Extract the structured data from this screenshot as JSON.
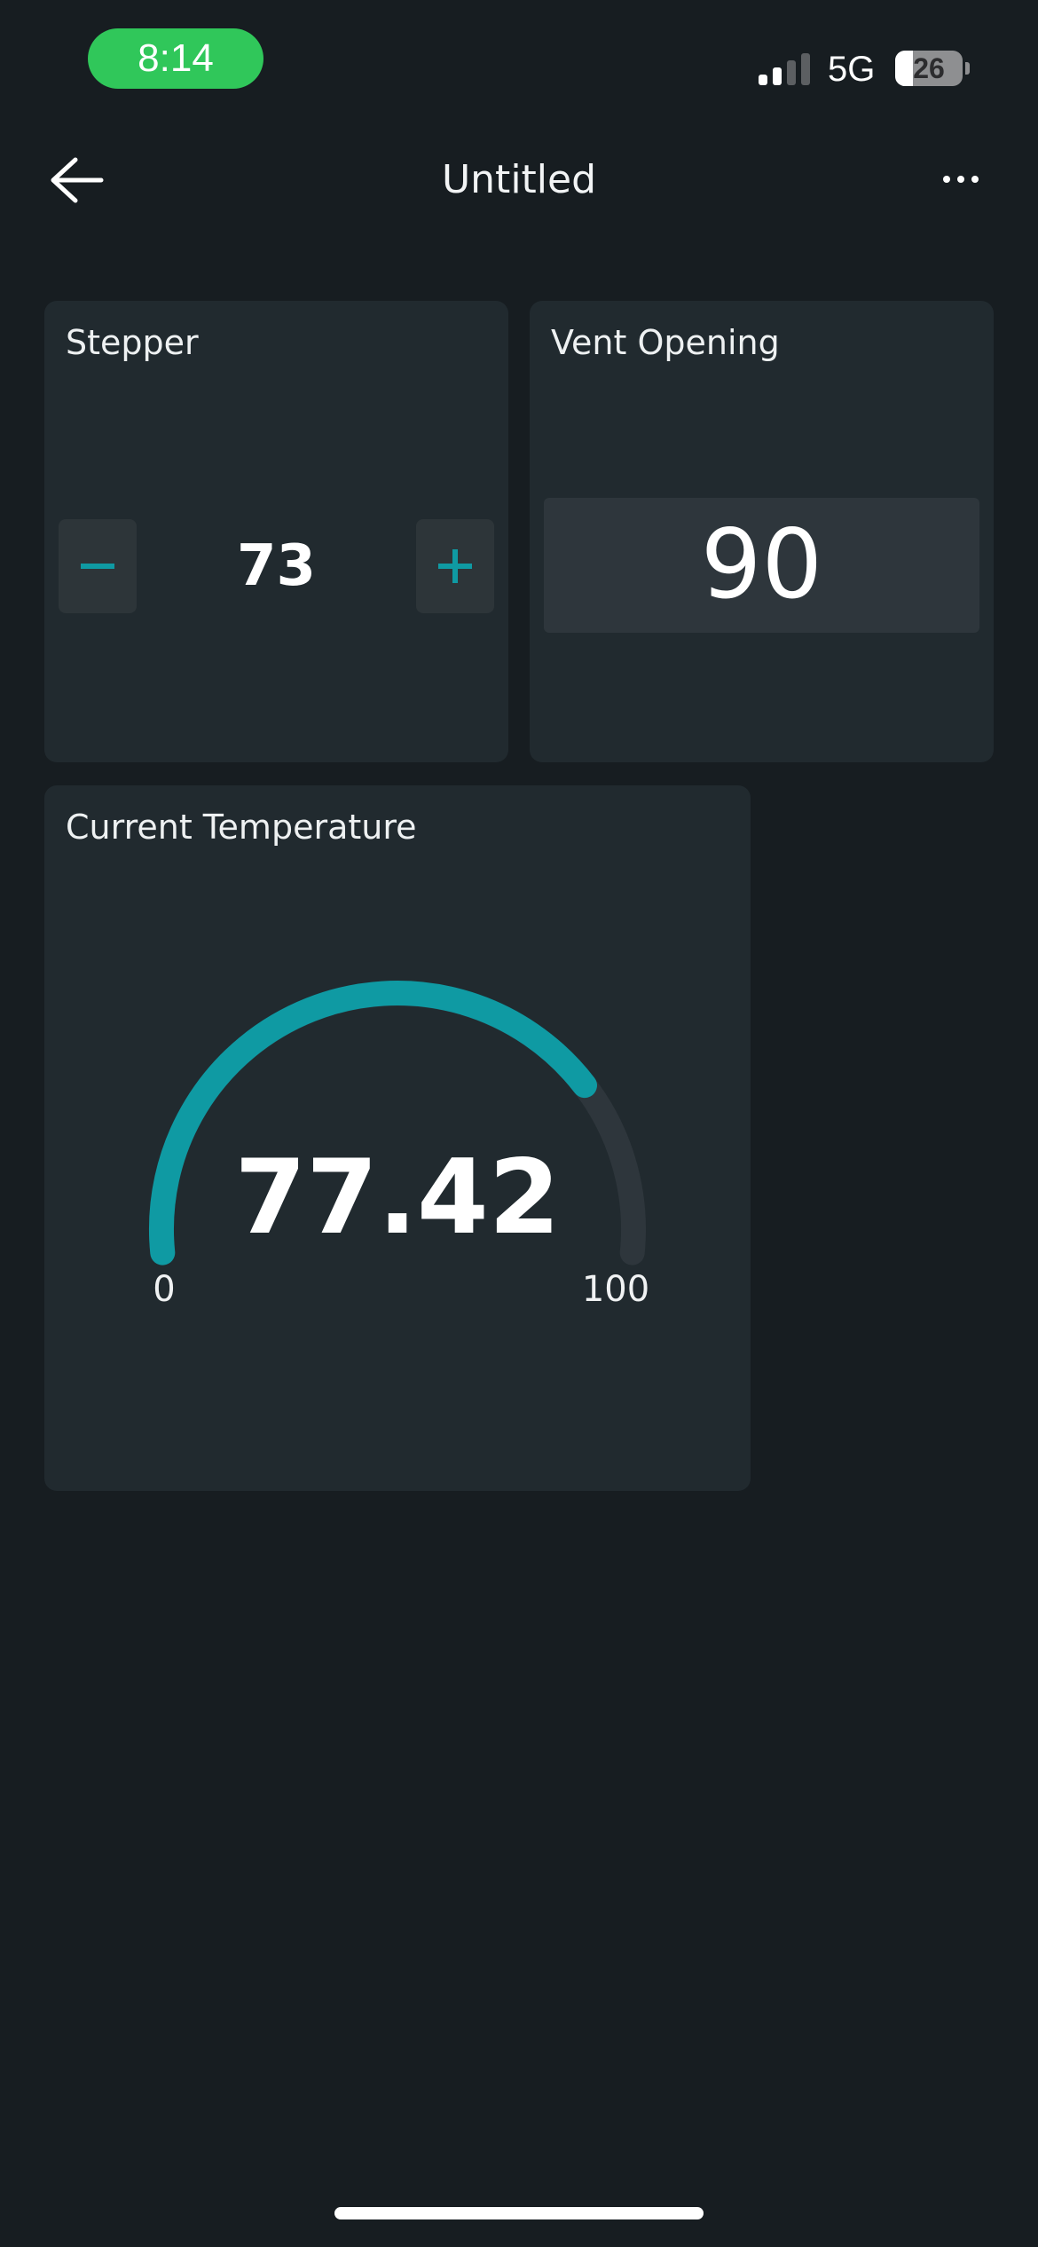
{
  "status_bar": {
    "time": "8:14",
    "network": "5G",
    "battery_percent": "26",
    "battery_level": 0.26,
    "signal_bars_active": 2,
    "signal_bars_total": 4,
    "time_pill_color": "#30c75a"
  },
  "header": {
    "title": "Untitled",
    "back_icon": "arrow-left-icon",
    "more_icon": "more-horizontal-icon"
  },
  "widgets": {
    "stepper": {
      "title": "Stepper",
      "value": "73",
      "decrement_icon": "minus-icon",
      "increment_icon": "plus-icon"
    },
    "vent_opening": {
      "title": "Vent Opening",
      "value": "90"
    },
    "current_temperature": {
      "title": "Current Temperature",
      "value": "77.42",
      "min_label": "0",
      "max_label": "100",
      "value_num": 77.42,
      "min": 0,
      "max": 100
    }
  },
  "colors": {
    "background": "#171d21",
    "card": "#212a2f",
    "accent": "#0f9aa3",
    "gauge_track": "#2e363c"
  }
}
